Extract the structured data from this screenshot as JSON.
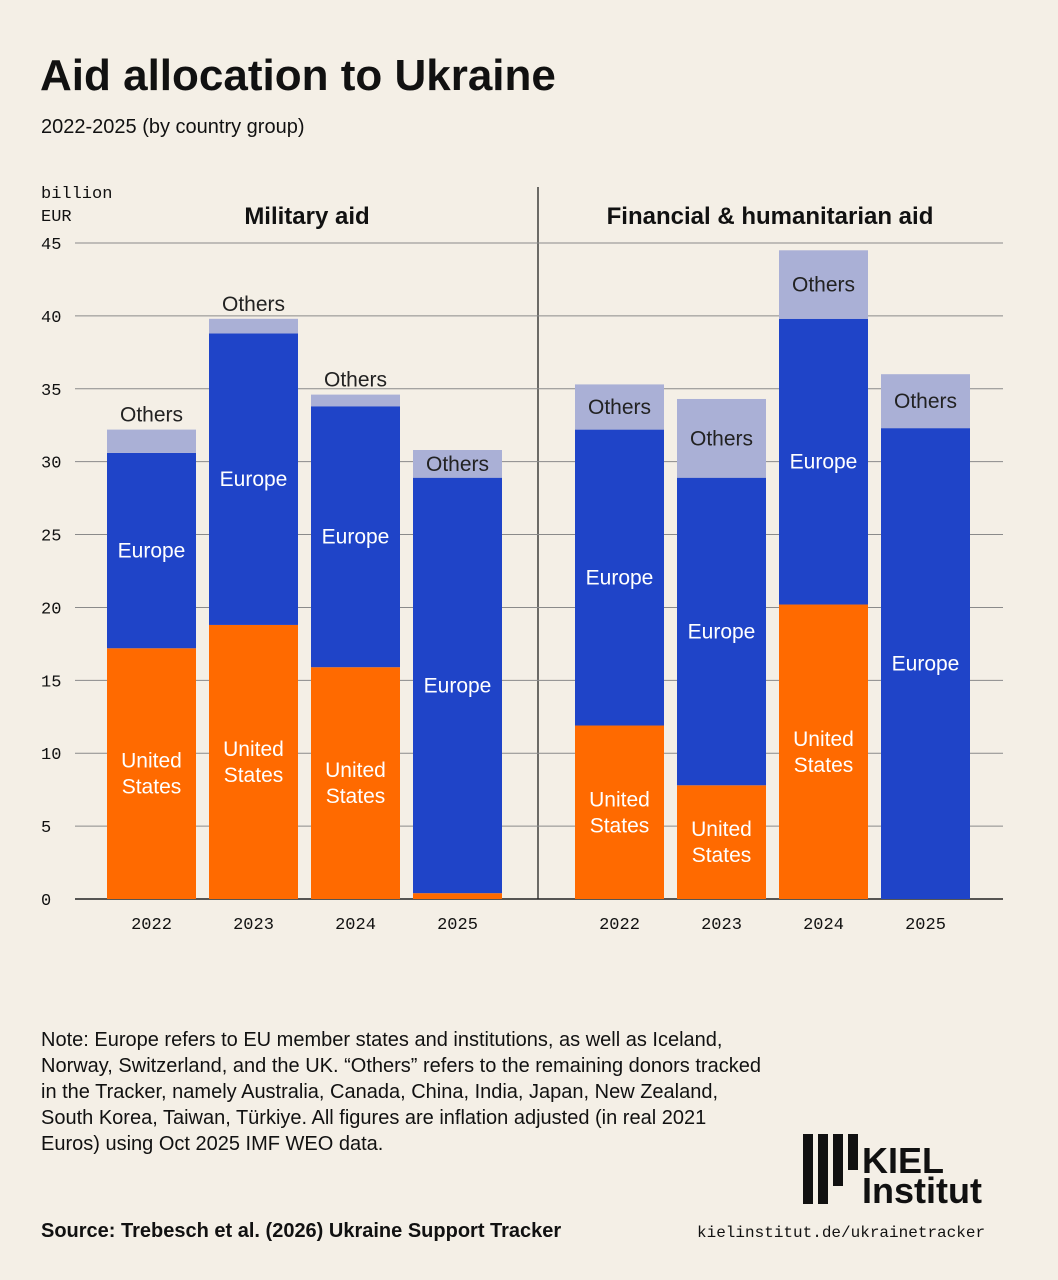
{
  "title": "Aid allocation to Ukraine",
  "subtitle": "2022-2025 (by country group)",
  "y_label": "billion EUR",
  "note": "Note: Europe refers to EU member states and institutions, as well as Iceland, Norway, Switzerland, and the UK. “Others” refers to the remaining donors tracked in the Tracker, namely Australia, Canada, China, India, Japan, New Zealand, South Korea, Taiwan, Türkiye. All figures are inflation adjusted (in real 2021 Euros) using Oct 2025 IMF WEO data.",
  "source": "Source: Trebesch et al. (2026) Ukraine Support Tracker",
  "url": "kielinstitut.de/ukrainetracker",
  "logo": [
    "KIEL",
    "Institut"
  ],
  "chart_data": [
    {
      "type": "bar",
      "stacked": true,
      "title": "Military aid",
      "categories": [
        "2022",
        "2023",
        "2024",
        "2025"
      ],
      "series": [
        {
          "name": "United States",
          "color": "#ff6a00",
          "values": [
            17.2,
            18.8,
            15.9,
            0.4
          ]
        },
        {
          "name": "Europe",
          "color": "#1f44c8",
          "values": [
            13.4,
            20.0,
            17.9,
            28.5
          ]
        },
        {
          "name": "Others",
          "color": "#aab0d6",
          "values": [
            1.6,
            1.0,
            0.8,
            1.9
          ]
        }
      ],
      "ylim": [
        0,
        45
      ],
      "yticks": [
        0,
        5,
        10,
        15,
        20,
        25,
        30,
        35,
        40,
        45
      ],
      "grid": true
    },
    {
      "type": "bar",
      "stacked": true,
      "title": "Financial & humanitarian aid",
      "categories": [
        "2022",
        "2023",
        "2024",
        "2025"
      ],
      "series": [
        {
          "name": "United States",
          "color": "#ff6a00",
          "values": [
            11.9,
            7.8,
            20.2,
            0
          ]
        },
        {
          "name": "Europe",
          "color": "#1f44c8",
          "values": [
            20.3,
            21.1,
            19.6,
            32.3
          ]
        },
        {
          "name": "Others",
          "color": "#aab0d6",
          "values": [
            3.1,
            5.4,
            4.7,
            3.7
          ]
        }
      ],
      "ylim": [
        0,
        45
      ],
      "yticks": [
        0,
        5,
        10,
        15,
        20,
        25,
        30,
        35,
        40,
        45
      ],
      "grid": true
    }
  ]
}
